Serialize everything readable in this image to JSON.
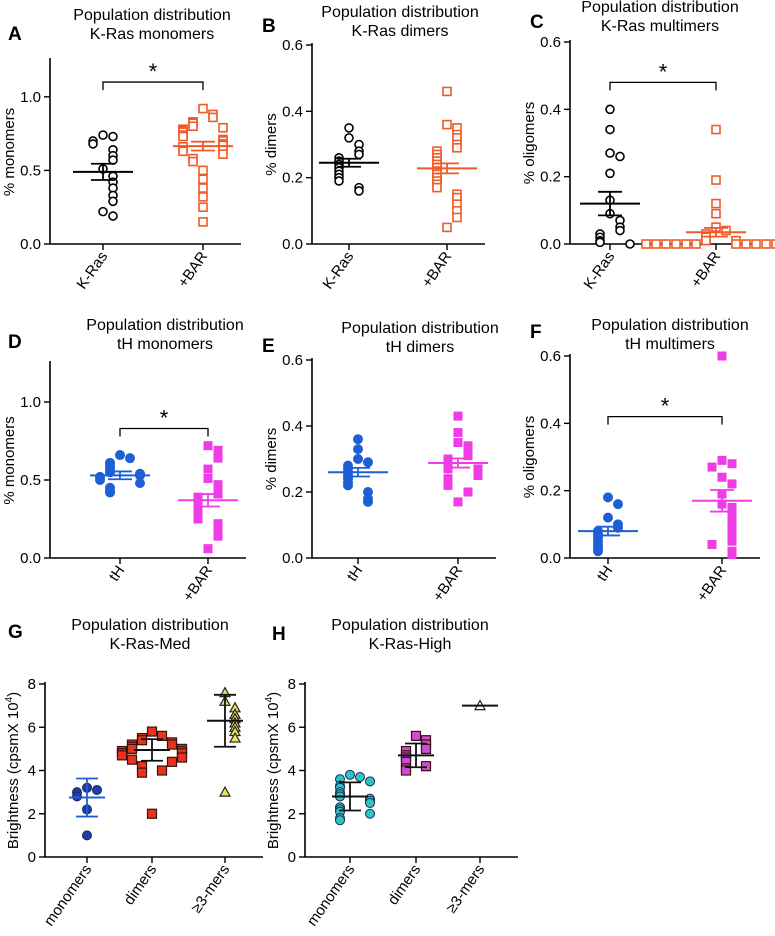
{
  "figure": {
    "panels": [
      {
        "letter": "A",
        "title_lines": [
          "Population distribution",
          "K-Ras monomers"
        ],
        "ylabel": "% monomers",
        "ylim": [
          0,
          1.25
        ],
        "yticks": [
          "0.0",
          "0.5",
          "1.0"
        ],
        "ytick_values": [
          0,
          0.5,
          1.0
        ],
        "categories": [
          "K-Ras",
          "+BAR"
        ],
        "significance": "*",
        "chart_data": {
          "type": "scatter",
          "title": "Population distribution K-Ras monomers",
          "ylabel": "% monomers",
          "ylim": [
            0,
            1.25
          ],
          "categories": [
            "K-Ras",
            "+BAR"
          ],
          "series": [
            {
              "name": "K-Ras",
              "marker": "circle-open",
              "color": "#000000",
              "mean": 0.49,
              "sem": 0.055,
              "values": [
                0.74,
                0.73,
                0.7,
                0.68,
                0.64,
                0.6,
                0.57,
                0.51,
                0.46,
                0.42,
                0.38,
                0.33,
                0.29,
                0.22,
                0.19
              ]
            },
            {
              "name": "+BAR",
              "marker": "square-open",
              "color": "#f05a28",
              "mean": 0.665,
              "sem": 0.03,
              "values": [
                0.92,
                0.88,
                0.86,
                0.83,
                0.82,
                0.8,
                0.79,
                0.78,
                0.77,
                0.76,
                0.74,
                0.73,
                0.71,
                0.7,
                0.68,
                0.67,
                0.66,
                0.64,
                0.63,
                0.61,
                0.58,
                0.56,
                0.5,
                0.44,
                0.38,
                0.32,
                0.25,
                0.15
              ]
            }
          ]
        }
      },
      {
        "letter": "B",
        "title_lines": [
          "Population distribution",
          "K-Ras dimers"
        ],
        "ylabel": "% dimers",
        "ylim": [
          0,
          0.6
        ],
        "yticks": [
          "0.0",
          "0.2",
          "0.4",
          "0.6"
        ],
        "ytick_values": [
          0,
          0.2,
          0.4,
          0.6
        ],
        "categories": [
          "K-Ras",
          "+BAR"
        ],
        "significance": "",
        "chart_data": {
          "type": "scatter",
          "title": "Population distribution K-Ras dimers",
          "ylabel": "% dimers",
          "ylim": [
            0,
            0.6
          ],
          "categories": [
            "K-Ras",
            "+BAR"
          ],
          "series": [
            {
              "name": "K-Ras",
              "marker": "circle-open",
              "color": "#000000",
              "mean": 0.245,
              "sem": 0.012,
              "values": [
                0.35,
                0.32,
                0.3,
                0.28,
                0.27,
                0.26,
                0.25,
                0.24,
                0.23,
                0.22,
                0.21,
                0.2,
                0.19,
                0.17,
                0.16
              ]
            },
            {
              "name": "+BAR",
              "marker": "square-open",
              "color": "#f05a28",
              "mean": 0.228,
              "sem": 0.015,
              "values": [
                0.46,
                0.36,
                0.35,
                0.33,
                0.32,
                0.3,
                0.29,
                0.28,
                0.27,
                0.26,
                0.25,
                0.24,
                0.23,
                0.22,
                0.21,
                0.2,
                0.19,
                0.18,
                0.17,
                0.15,
                0.14,
                0.12,
                0.1,
                0.08,
                0.05
              ]
            }
          ]
        }
      },
      {
        "letter": "C",
        "title_lines": [
          "Population distribution",
          "K-Ras multimers"
        ],
        "ylabel": "% oligomers",
        "ylim": [
          0,
          0.6
        ],
        "yticks": [
          "0.0",
          "0.2",
          "0.4",
          "0.6"
        ],
        "ytick_values": [
          0,
          0.2,
          0.4,
          0.6
        ],
        "categories": [
          "K-Ras",
          "+BAR"
        ],
        "significance": "*",
        "chart_data": {
          "type": "scatter",
          "title": "Population distribution K-Ras multimers",
          "ylabel": "% oligomers",
          "ylim": [
            0,
            0.6
          ],
          "categories": [
            "K-Ras",
            "+BAR"
          ],
          "series": [
            {
              "name": "K-Ras",
              "marker": "circle-open",
              "color": "#000000",
              "mean": 0.12,
              "sem": 0.035,
              "values": [
                0.4,
                0.34,
                0.27,
                0.26,
                0.21,
                0.13,
                0.09,
                0.07,
                0.05,
                0.04,
                0.03,
                0.02,
                0.01,
                0.005,
                0.0
              ]
            },
            {
              "name": "+BAR",
              "marker": "square-open",
              "color": "#f05a28",
              "mean": 0.035,
              "sem": 0.013,
              "values": [
                0.34,
                0.19,
                0.12,
                0.09,
                0.05,
                0.04,
                0.03,
                0.02,
                0.01,
                0.01,
                0.0,
                0.0,
                0.0,
                0.0,
                0.0,
                0.0,
                0.0,
                0.0,
                0.0,
                0.0,
                0.0,
                0.0,
                0.0
              ]
            }
          ]
        }
      },
      {
        "letter": "D",
        "title_lines": [
          "Population distribution",
          "tH monomers"
        ],
        "ylabel": "% monomers",
        "ylim": [
          0,
          1.25
        ],
        "yticks": [
          "0.0",
          "0.5",
          "1.0"
        ],
        "ytick_values": [
          0,
          0.5,
          1.0
        ],
        "categories": [
          "tH",
          "+BAR"
        ],
        "significance": "*",
        "chart_data": {
          "type": "scatter",
          "title": "Population distribution tH monomers",
          "ylabel": "% monomers",
          "ylim": [
            0,
            1.25
          ],
          "categories": [
            "tH",
            "+BAR"
          ],
          "series": [
            {
              "name": "tH",
              "marker": "circle-filled",
              "color": "#1f5fd6",
              "mean": 0.53,
              "sem": 0.025,
              "values": [
                0.66,
                0.64,
                0.61,
                0.59,
                0.57,
                0.55,
                0.54,
                0.53,
                0.52,
                0.5,
                0.48,
                0.45,
                0.43,
                0.42
              ]
            },
            {
              "name": "+BAR",
              "marker": "square-filled",
              "color": "#f03ce6",
              "mean": 0.37,
              "sem": 0.04,
              "values": [
                0.72,
                0.69,
                0.64,
                0.57,
                0.51,
                0.47,
                0.44,
                0.41,
                0.39,
                0.37,
                0.34,
                0.32,
                0.3,
                0.28,
                0.25,
                0.22,
                0.19,
                0.14,
                0.06
              ]
            }
          ]
        }
      },
      {
        "letter": "E",
        "title_lines": [
          "Population distribution",
          "tH dimers"
        ],
        "ylabel": "% dimers",
        "ylim": [
          0,
          0.6
        ],
        "yticks": [
          "0.0",
          "0.2",
          "0.4",
          "0.6"
        ],
        "ytick_values": [
          0,
          0.2,
          0.4,
          0.6
        ],
        "categories": [
          "tH",
          "+BAR"
        ],
        "significance": "",
        "chart_data": {
          "type": "scatter",
          "title": "Population distribution tH dimers",
          "ylabel": "% dimers",
          "ylim": [
            0,
            0.6
          ],
          "categories": [
            "tH",
            "+BAR"
          ],
          "series": [
            {
              "name": "tH",
              "marker": "circle-filled",
              "color": "#1f5fd6",
              "mean": 0.26,
              "sem": 0.013,
              "values": [
                0.36,
                0.33,
                0.3,
                0.29,
                0.28,
                0.27,
                0.26,
                0.25,
                0.24,
                0.23,
                0.22,
                0.2,
                0.18,
                0.17
              ]
            },
            {
              "name": "+BAR",
              "marker": "square-filled",
              "color": "#f03ce6",
              "mean": 0.288,
              "sem": 0.014,
              "values": [
                0.43,
                0.38,
                0.35,
                0.34,
                0.32,
                0.31,
                0.3,
                0.29,
                0.28,
                0.27,
                0.27,
                0.26,
                0.25,
                0.24,
                0.23,
                0.22,
                0.2,
                0.17
              ]
            }
          ]
        }
      },
      {
        "letter": "F",
        "title_lines": [
          "Population distribution",
          "tH multimers"
        ],
        "ylabel": "% oligomers",
        "ylim": [
          0,
          0.6
        ],
        "yticks": [
          "0.0",
          "0.2",
          "0.4",
          "0.6"
        ],
        "ytick_values": [
          0,
          0.2,
          0.4,
          0.6
        ],
        "categories": [
          "tH",
          "+BAR"
        ],
        "significance": "*",
        "chart_data": {
          "type": "scatter",
          "title": "Population distribution tH multimers",
          "ylabel": "% oligomers",
          "ylim": [
            0,
            0.6
          ],
          "categories": [
            "tH",
            "+BAR"
          ],
          "series": [
            {
              "name": "tH",
              "marker": "circle-filled",
              "color": "#1f5fd6",
              "mean": 0.08,
              "sem": 0.013,
              "values": [
                0.18,
                0.16,
                0.12,
                0.1,
                0.09,
                0.08,
                0.07,
                0.06,
                0.05,
                0.04,
                0.03,
                0.02
              ]
            },
            {
              "name": "+BAR",
              "marker": "square-filled",
              "color": "#f03ce6",
              "mean": 0.17,
              "sem": 0.032,
              "values": [
                0.6,
                0.29,
                0.28,
                0.27,
                0.24,
                0.22,
                0.19,
                0.16,
                0.15,
                0.13,
                0.11,
                0.09,
                0.08,
                0.06,
                0.05,
                0.04,
                0.02,
                0.01
              ]
            }
          ]
        }
      },
      {
        "letter": "G",
        "title_lines": [
          "Population distribution",
          "K-Ras-Med"
        ],
        "ylabel": "Brightness (cpsmX 10",
        "ylabel_sup": "4",
        "ylabel_end": ")",
        "ylim": [
          0,
          8
        ],
        "yticks": [
          "0",
          "2",
          "4",
          "6",
          "8"
        ],
        "ytick_values": [
          0,
          2,
          4,
          6,
          8
        ],
        "categories": [
          "monomers",
          "dimers",
          "≥3-mers"
        ],
        "significance": "",
        "chart_data": {
          "type": "scatter",
          "title": "Population distribution K-Ras-Med",
          "ylabel": "Brightness (cpsmX 10^4)",
          "ylim": [
            0,
            8
          ],
          "categories": [
            "monomers",
            "dimers",
            "≥3-mers"
          ],
          "series": [
            {
              "name": "monomers",
              "marker": "circle-filled",
              "color": "#1f3fa8",
              "mean": 2.75,
              "sd": 0.88,
              "values": [
                3.2,
                3.1,
                3.0,
                2.8,
                2.2,
                1.0
              ]
            },
            {
              "name": "dimers",
              "marker": "square-filled",
              "color": "#e8341c",
              "mean": 4.95,
              "sd": 0.5,
              "values": [
                5.8,
                5.6,
                5.5,
                5.4,
                5.3,
                5.2,
                5.2,
                5.1,
                5.0,
                5.0,
                4.9,
                4.9,
                4.8,
                4.8,
                4.7,
                4.6,
                4.5,
                4.4,
                4.2,
                4.0,
                3.9,
                2.0
              ]
            },
            {
              "name": "≥3-mers",
              "marker": "triangle-filled",
              "color": "#e8e060",
              "mean": 6.3,
              "sd": 1.2,
              "values": [
                7.6,
                7.2,
                6.9,
                6.6,
                6.4,
                6.2,
                6.0,
                5.8,
                5.5,
                3.0
              ]
            }
          ]
        }
      },
      {
        "letter": "H",
        "title_lines": [
          "Population distribution",
          "K-Ras-High"
        ],
        "ylabel": "Brightness (cpsmX 10",
        "ylabel_sup": "4",
        "ylabel_end": ")",
        "ylim": [
          0,
          8
        ],
        "yticks": [
          "0",
          "2",
          "4",
          "6",
          "8"
        ],
        "ytick_values": [
          0,
          2,
          4,
          6,
          8
        ],
        "categories": [
          "monomers",
          "dimers",
          "≥3-mers"
        ],
        "significance": "",
        "chart_data": {
          "type": "scatter",
          "title": "Population distribution K-Ras-High",
          "ylabel": "Brightness (cpsmX 10^4)",
          "ylim": [
            0,
            8
          ],
          "categories": [
            "monomers",
            "dimers",
            "≥3-mers"
          ],
          "series": [
            {
              "name": "monomers",
              "marker": "circle-filled",
              "color": "#2ec4c4",
              "mean": 2.8,
              "sd": 0.65,
              "values": [
                3.8,
                3.7,
                3.6,
                3.5,
                3.3,
                3.2,
                3.0,
                2.9,
                2.8,
                2.7,
                2.6,
                2.5,
                2.3,
                2.2,
                2.1,
                2.0,
                1.8,
                1.7
              ]
            },
            {
              "name": "dimers",
              "marker": "square-filled",
              "color": "#d24ad8",
              "mean": 4.7,
              "sd": 0.55,
              "values": [
                5.6,
                5.4,
                5.2,
                5.0,
                4.9,
                4.7,
                4.6,
                4.4,
                4.2,
                4.1,
                4.0
              ]
            },
            {
              "name": "≥3-mers",
              "marker": "triangle-open",
              "color": "#000000",
              "mean": 7.0,
              "sd": 0,
              "values": [
                7.0
              ]
            }
          ]
        }
      }
    ]
  }
}
